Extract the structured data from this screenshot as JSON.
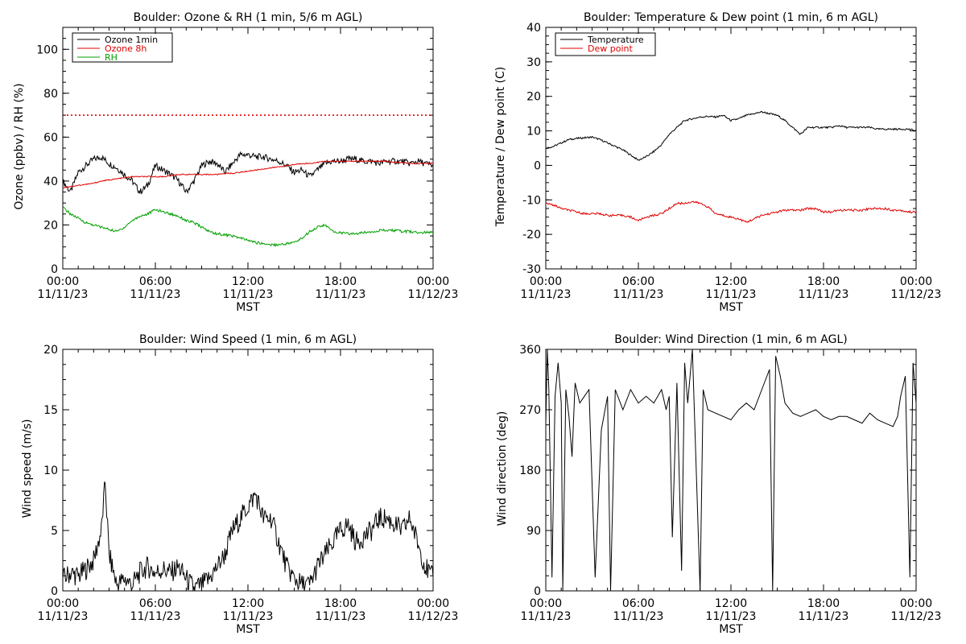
{
  "colors": {
    "black": "#000000",
    "red": "#e00000",
    "green": "#00a000"
  },
  "time_ticks": [
    "00:00",
    "06:00",
    "12:00",
    "18:00",
    "00:00"
  ],
  "date_ticks": [
    "11/11/23",
    "11/11/23",
    "11/11/23",
    "11/11/23",
    "11/12/23"
  ],
  "xlabel": "MST",
  "chart_data": [
    {
      "type": "line",
      "title": "Boulder: Ozone & RH (1 min, 5/6 m AGL)",
      "ylabel": "Ozone (ppbv) / RH (%)",
      "xlim": [
        "11/11/23 00:00",
        "11/12/23 00:00"
      ],
      "ylim": [
        0,
        110
      ],
      "yticks": [
        0,
        20,
        40,
        60,
        80,
        100
      ],
      "legend_position": "top-left",
      "reference_line": {
        "y": 70,
        "style": "dotted",
        "color": "#e00000"
      },
      "x_hours": [
        0,
        0.5,
        1,
        1.5,
        2,
        2.5,
        3,
        3.5,
        4,
        4.5,
        5,
        5.5,
        6,
        6.5,
        7,
        7.5,
        8,
        8.5,
        9,
        9.5,
        10,
        10.5,
        11,
        11.5,
        12,
        12.5,
        13,
        13.5,
        14,
        14.5,
        15,
        15.5,
        16,
        16.5,
        17,
        17.5,
        18,
        18.5,
        19,
        19.5,
        20,
        20.5,
        21,
        21.5,
        22,
        22.5,
        23,
        23.5,
        24
      ],
      "series": [
        {
          "name": "Ozone 1min",
          "color": "#000000",
          "values": [
            40,
            35,
            44,
            47,
            50,
            51,
            48,
            46,
            43,
            40,
            35,
            38,
            47,
            45,
            43,
            40,
            35,
            40,
            47,
            49,
            48,
            44,
            48,
            52,
            52,
            51,
            51,
            50,
            49,
            47,
            44,
            45,
            42,
            45,
            48,
            49,
            49,
            50,
            50,
            49,
            49,
            48,
            49,
            49,
            49,
            48,
            49,
            48,
            47
          ]
        },
        {
          "name": "Ozone 8h",
          "color": "#e00000",
          "values": [
            37,
            37.5,
            38,
            38.5,
            39,
            40,
            40.5,
            41,
            41.5,
            42,
            42,
            42,
            42,
            42,
            42.5,
            43,
            43,
            43,
            43,
            43,
            43,
            43.5,
            43.5,
            44,
            44.5,
            45,
            45.5,
            46,
            46.5,
            47,
            47.5,
            48,
            48,
            48.5,
            49,
            49,
            49,
            49,
            49,
            49,
            49,
            49,
            49,
            48.5,
            48.5,
            48,
            48,
            48,
            48
          ]
        },
        {
          "name": "RH",
          "color": "#00a000",
          "values": [
            28,
            25,
            23,
            21,
            20,
            19,
            18,
            17,
            19,
            22,
            24,
            25,
            27,
            26,
            25,
            24,
            22,
            21,
            19,
            17,
            16,
            15.5,
            15,
            14,
            13,
            12,
            11.5,
            11,
            11,
            11.5,
            12,
            14,
            17,
            19,
            20,
            17,
            16.5,
            16,
            16,
            16.5,
            17,
            17.5,
            17.5,
            17.5,
            17,
            17,
            16.5,
            16.5,
            17
          ]
        }
      ]
    },
    {
      "type": "line",
      "title": "Boulder: Temperature & Dew point (1 min, 6 m AGL)",
      "ylabel": "Temperature / Dew point (C)",
      "xlim": [
        "11/11/23 00:00",
        "11/12/23 00:00"
      ],
      "ylim": [
        -30,
        40
      ],
      "yticks": [
        -30,
        -20,
        -10,
        0,
        10,
        20,
        30,
        40
      ],
      "legend_position": "top-left",
      "x_hours": [
        0,
        0.5,
        1,
        1.5,
        2,
        2.5,
        3,
        3.5,
        4,
        4.5,
        5,
        5.5,
        6,
        6.5,
        7,
        7.5,
        8,
        8.5,
        9,
        9.5,
        10,
        10.5,
        11,
        11.5,
        12,
        12.5,
        13,
        13.5,
        14,
        14.5,
        15,
        15.5,
        16,
        16.5,
        17,
        17.5,
        18,
        18.5,
        19,
        19.5,
        20,
        20.5,
        21,
        21.5,
        22,
        22.5,
        23,
        23.5,
        24
      ],
      "series": [
        {
          "name": "Temperature",
          "color": "#000000",
          "values": [
            5,
            5.5,
            6.5,
            7.5,
            7.8,
            8,
            8.2,
            7.5,
            6.5,
            5.5,
            4.5,
            3,
            1.5,
            2.5,
            4,
            6,
            9,
            11,
            13,
            13.5,
            14,
            14.2,
            14,
            14.5,
            13,
            13.5,
            14.5,
            15,
            15.5,
            15,
            14.5,
            13,
            11,
            9,
            11,
            11,
            11,
            11,
            11.5,
            11,
            11,
            11,
            11,
            10.5,
            10.5,
            10.5,
            10.5,
            10.5,
            10
          ]
        },
        {
          "name": "Dew point",
          "color": "#e00000",
          "values": [
            -11,
            -11.5,
            -12.5,
            -13,
            -13.5,
            -14,
            -14,
            -14,
            -14.5,
            -14.5,
            -14.5,
            -15,
            -16,
            -15,
            -14.5,
            -14,
            -12.5,
            -11,
            -11,
            -10.5,
            -11,
            -12,
            -14,
            -14.5,
            -15,
            -15.5,
            -16.5,
            -15.5,
            -14.5,
            -14,
            -13.5,
            -13,
            -13,
            -13,
            -12.5,
            -12.5,
            -13.5,
            -13.5,
            -13,
            -13,
            -13,
            -13,
            -12.5,
            -12.5,
            -12.5,
            -13,
            -13,
            -13.5,
            -13.5
          ]
        }
      ]
    },
    {
      "type": "line",
      "title": "Boulder: Wind Speed (1 min, 6 m AGL)",
      "ylabel": "Wind speed (m/s)",
      "xlim": [
        "11/11/23 00:00",
        "11/12/23 00:00"
      ],
      "ylim": [
        0,
        20
      ],
      "yticks": [
        0,
        5,
        10,
        15,
        20
      ],
      "x_hours": [
        0,
        0.5,
        1,
        1.5,
        2,
        2.5,
        2.75,
        3,
        3.5,
        4,
        4.5,
        5,
        5.5,
        6,
        6.5,
        7,
        7.5,
        8,
        8.5,
        9,
        9.5,
        10,
        10.5,
        11,
        11.5,
        12,
        12.5,
        13,
        13.5,
        14,
        14.5,
        15,
        15.5,
        16,
        16.5,
        17,
        17.5,
        18,
        18.5,
        19,
        19.5,
        20,
        20.5,
        21,
        21.5,
        22,
        22.5,
        23,
        23.5,
        24
      ],
      "series": [
        {
          "name": "Wind speed",
          "color": "#000000",
          "values": [
            1,
            1.5,
            1.2,
            1.8,
            2.5,
            5,
            9,
            3,
            0.5,
            1,
            0.5,
            1.5,
            2,
            1.5,
            1.8,
            1.5,
            2,
            1,
            0.2,
            0.5,
            1,
            2,
            3,
            5,
            6,
            7,
            8,
            6,
            6,
            4,
            2,
            1,
            0.5,
            0.5,
            2,
            3,
            4,
            5,
            5.5,
            4,
            4.5,
            5,
            6,
            6,
            5.5,
            5,
            6,
            4,
            2,
            1
          ]
        }
      ]
    },
    {
      "type": "line",
      "title": "Boulder: Wind Direction (1 min, 6 m AGL)",
      "ylabel": "Wind direction (deg)",
      "xlim": [
        "11/11/23 00:00",
        "11/12/23 00:00"
      ],
      "ylim": [
        0,
        360
      ],
      "yticks": [
        0,
        90,
        180,
        270,
        360
      ],
      "x_hours": [
        0,
        0.1,
        0.2,
        0.4,
        0.6,
        0.8,
        1.0,
        1.1,
        1.3,
        1.5,
        1.7,
        1.9,
        2.2,
        2.5,
        2.8,
        3.2,
        3.6,
        4.0,
        4.2,
        4.5,
        5.0,
        5.5,
        6.0,
        6.5,
        7.0,
        7.5,
        7.8,
        8.0,
        8.2,
        8.5,
        8.8,
        9.0,
        9.2,
        9.5,
        10.0,
        10.2,
        10.5,
        11.0,
        11.5,
        12.0,
        12.5,
        13.0,
        13.5,
        14.0,
        14.5,
        14.7,
        14.9,
        15.2,
        15.5,
        16.0,
        16.5,
        17.0,
        17.5,
        18.0,
        18.5,
        19.0,
        19.5,
        20.0,
        20.5,
        21.0,
        21.5,
        22.0,
        22.5,
        22.8,
        23.0,
        23.3,
        23.6,
        23.8,
        24.0
      ],
      "series": [
        {
          "name": "Wind direction",
          "color": "#000000",
          "values": [
            250,
            360,
            300,
            20,
            290,
            340,
            280,
            0,
            300,
            260,
            200,
            310,
            280,
            290,
            300,
            20,
            240,
            290,
            0,
            300,
            270,
            300,
            280,
            290,
            280,
            300,
            270,
            290,
            80,
            310,
            30,
            340,
            280,
            360,
            0,
            300,
            270,
            265,
            260,
            255,
            270,
            280,
            270,
            300,
            330,
            0,
            350,
            320,
            280,
            265,
            260,
            265,
            270,
            260,
            255,
            260,
            260,
            255,
            250,
            265,
            255,
            250,
            245,
            260,
            290,
            320,
            20,
            340,
            280
          ]
        }
      ]
    }
  ]
}
